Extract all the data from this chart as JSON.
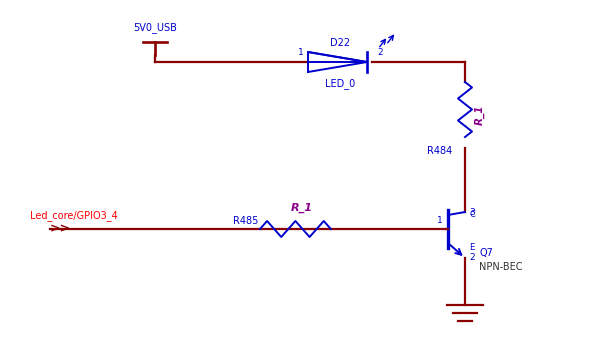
{
  "bg_color": "#ffffff",
  "wire_color": "#8B0000",
  "component_color": "#0000CD",
  "component_color2": "#8B008B",
  "label_color_red": "#FF0000",
  "label_color_blue": "#0000CD",
  "label_color_dark": "#333333",
  "5v0_label": "5V0_USB",
  "led_label": "D22",
  "led_sub": "LED_0",
  "r_top_label": "R_1",
  "r_top_sub": "R484",
  "gpio_label": "Led_core/GPIO3_4",
  "r_bot_label": "R_1",
  "r_bot_sub": "R485",
  "q_label": "Q7",
  "q_sub": "NPN-BEC"
}
